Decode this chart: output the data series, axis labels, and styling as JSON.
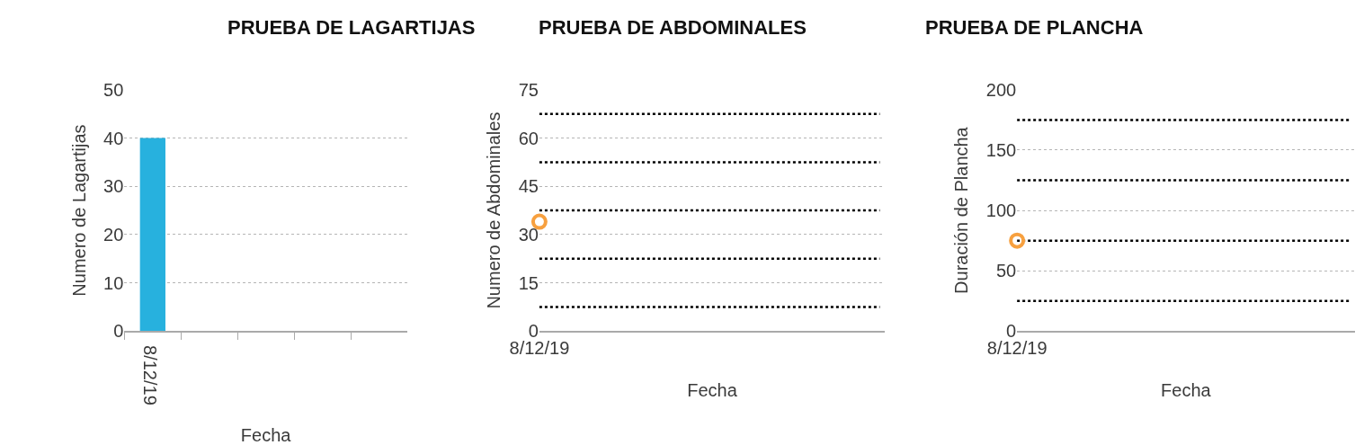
{
  "chart_data": [
    {
      "type": "bar",
      "title": "PRUEBA DE LAGARTIJAS",
      "xlabel": "Fecha",
      "ylabel": "Numero de Lagartijas",
      "categories": [
        "8/12/19",
        null,
        null,
        null,
        null
      ],
      "values": [
        40,
        null,
        null,
        null,
        null
      ],
      "color": "#27b1de",
      "ylim": [
        0,
        50
      ],
      "yticks": [
        0,
        10,
        20,
        30,
        40,
        50
      ],
      "grid": "y"
    },
    {
      "type": "scatter",
      "title": "PRUEBA DE ABDOMINALES",
      "xlabel": "Fecha",
      "ylabel": "Numero de Abdominales",
      "categories": [
        "8/12/19"
      ],
      "values": [
        34
      ],
      "color": "#f7a03f",
      "marker": "circle",
      "ylim": [
        0,
        75
      ],
      "yticks": [
        0,
        15,
        30,
        45,
        60,
        75
      ],
      "grid": "y",
      "ref_lines": [
        {
          "axis": "y",
          "value": 7.5,
          "color": "#000000",
          "line_style": "dotted"
        },
        {
          "axis": "y",
          "value": 22.5,
          "color": "#000000",
          "line_style": "dotted"
        },
        {
          "axis": "y",
          "value": 37.5,
          "color": "#000000",
          "line_style": "dotted"
        },
        {
          "axis": "y",
          "value": 52.5,
          "color": "#000000",
          "line_style": "dotted"
        },
        {
          "axis": "y",
          "value": 67.5,
          "color": "#000000",
          "line_style": "dotted"
        }
      ]
    },
    {
      "type": "scatter",
      "title": "PRUEBA DE PLANCHA",
      "xlabel": "Fecha",
      "ylabel": "Duración de Plancha",
      "categories": [
        "8/12/19"
      ],
      "values": [
        75
      ],
      "color": "#f7a03f",
      "marker": "circle",
      "ylim": [
        0,
        200
      ],
      "yticks": [
        0,
        50,
        100,
        150,
        200
      ],
      "grid": "y",
      "ref_lines": [
        {
          "axis": "y",
          "value": 25,
          "color": "#000000",
          "line_style": "dotted"
        },
        {
          "axis": "y",
          "value": 75,
          "color": "#000000",
          "line_style": "dotted"
        },
        {
          "axis": "y",
          "value": 125,
          "color": "#000000",
          "line_style": "dotted"
        },
        {
          "axis": "y",
          "value": 175,
          "color": "#000000",
          "line_style": "dotted"
        }
      ]
    }
  ]
}
